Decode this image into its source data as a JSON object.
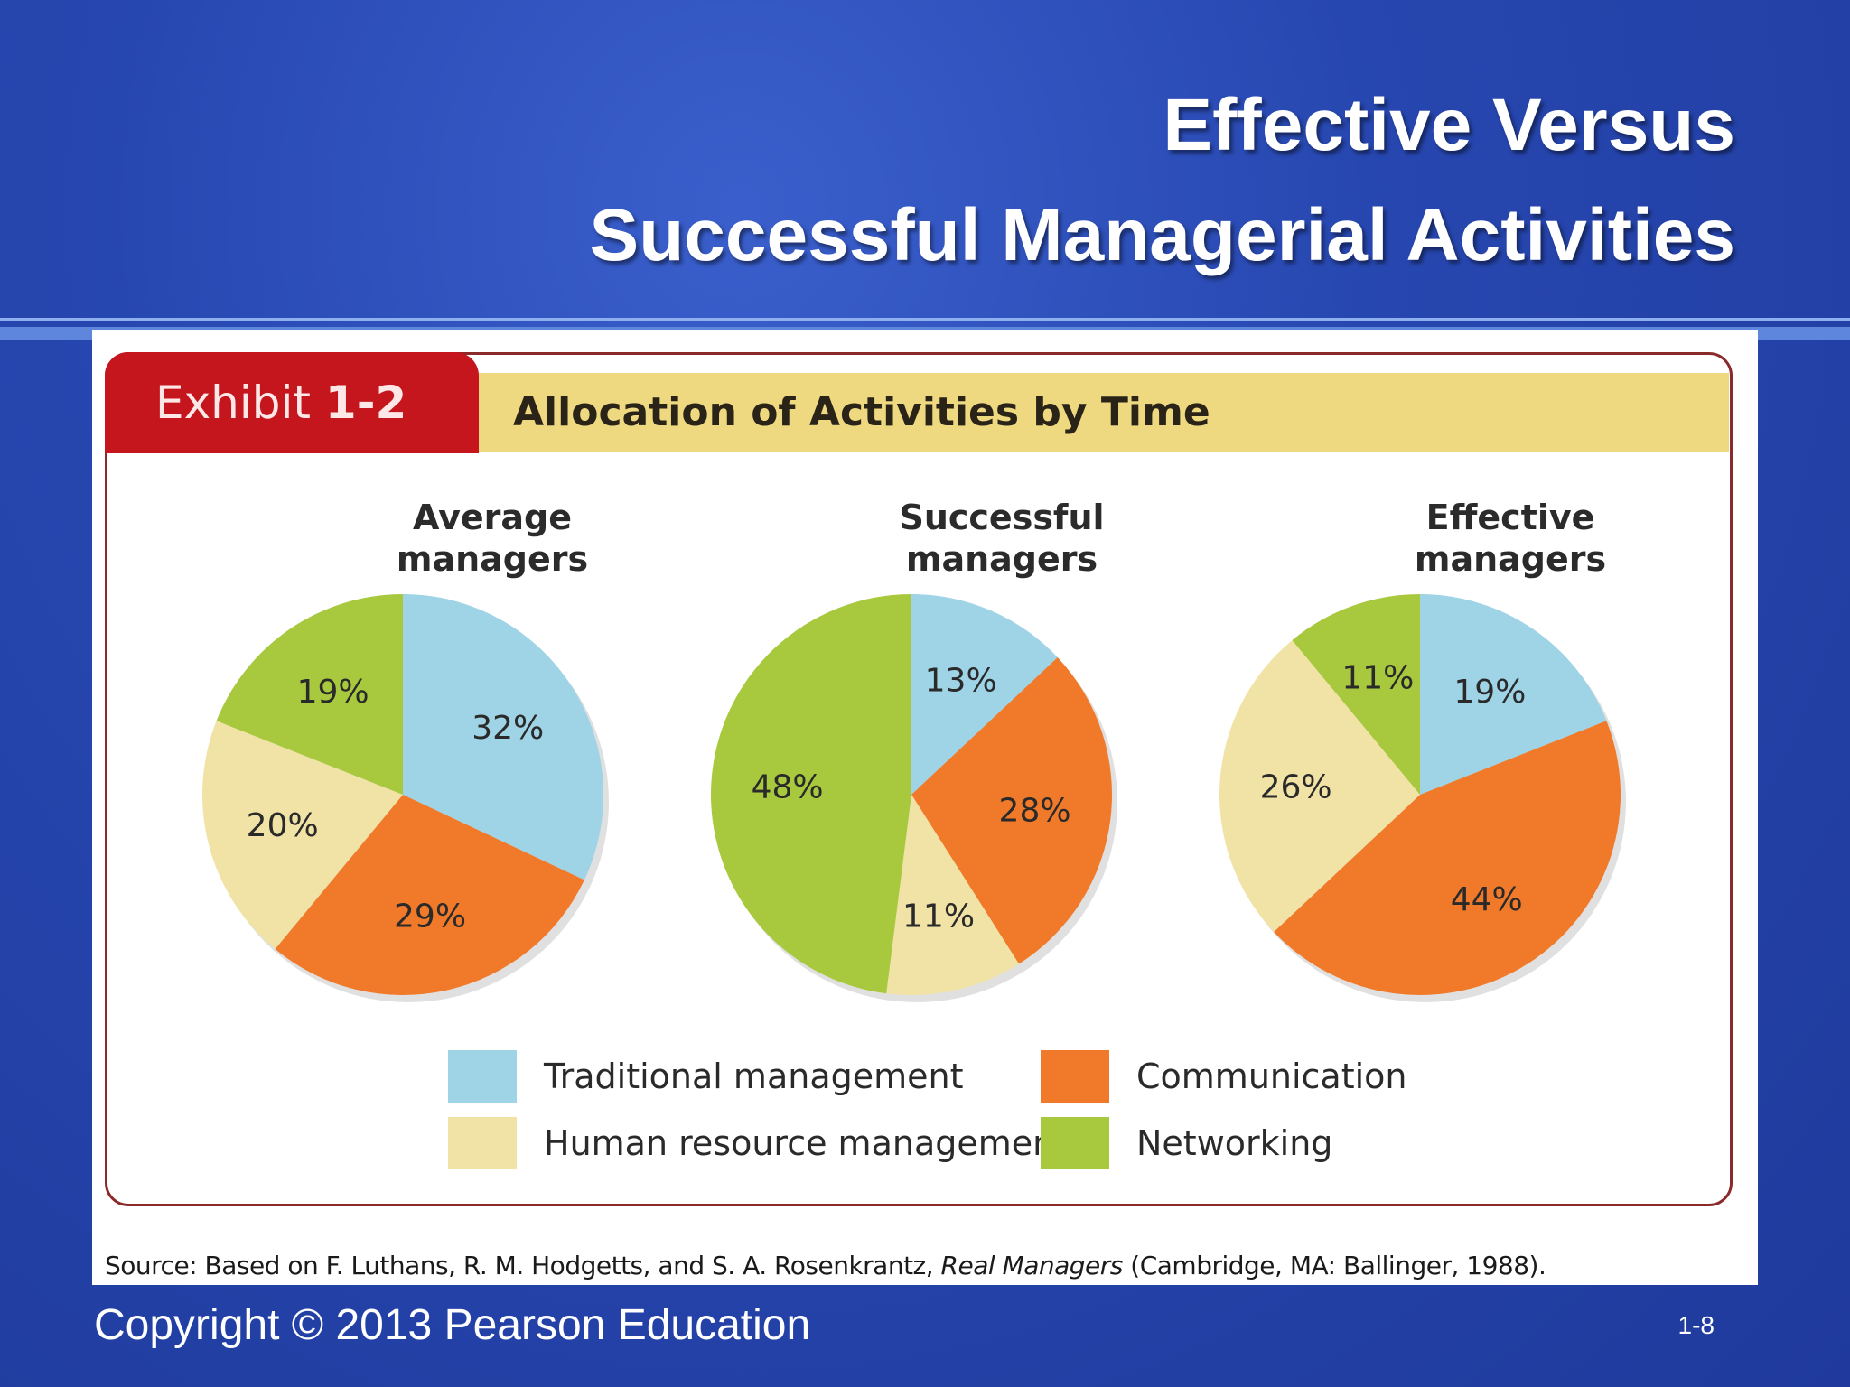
{
  "slide": {
    "title_line1": "Effective Versus",
    "title_line2": "Successful Managerial Activities",
    "copyright": "Copyright © 2013 Pearson Education",
    "page_number": "1-8"
  },
  "exhibit": {
    "label_prefix": "Exhibit",
    "label_number": "1-2",
    "heading": "Allocation of Activities by Time",
    "source_prefix": "Source: Based on F. Luthans, R. M. Hodgetts, and S. A. Rosenkrantz, ",
    "source_title": "Real Managers",
    "source_suffix": " (Cambridge, MA: Ballinger, 1988)."
  },
  "colors": {
    "traditional": "#9fd3e6",
    "communication": "#f07a2a",
    "human_resource": "#f1e3a6",
    "networking": "#a8c83e",
    "tab_red": "#c4161c",
    "banner_yellow": "#efd980"
  },
  "legend": [
    {
      "label": "Traditional management",
      "color": "#9fd3e6"
    },
    {
      "label": "Communication",
      "color": "#f07a2a"
    },
    {
      "label": "Human resource management",
      "color": "#f1e3a6"
    },
    {
      "label": "Networking",
      "color": "#a8c83e"
    }
  ],
  "chart_data": [
    {
      "type": "pie",
      "title": "Average managers",
      "title_lines": [
        "Average",
        "managers"
      ],
      "categories": [
        "Traditional management",
        "Communication",
        "Human resource management",
        "Networking"
      ],
      "values": [
        32,
        29,
        20,
        19
      ],
      "labels": [
        "32%",
        "29%",
        "20%",
        "19%"
      ]
    },
    {
      "type": "pie",
      "title": "Successful managers",
      "title_lines": [
        "Successful",
        "managers"
      ],
      "categories": [
        "Traditional management",
        "Communication",
        "Human resource management",
        "Networking"
      ],
      "values": [
        13,
        28,
        11,
        48
      ],
      "labels": [
        "13%",
        "28%",
        "11%",
        "48%"
      ]
    },
    {
      "type": "pie",
      "title": "Effective managers",
      "title_lines": [
        "Effective",
        "managers"
      ],
      "categories": [
        "Traditional management",
        "Communication",
        "Human resource management",
        "Networking"
      ],
      "values": [
        19,
        44,
        26,
        11
      ],
      "labels": [
        "19%",
        "44%",
        "26%",
        "11%"
      ]
    }
  ]
}
